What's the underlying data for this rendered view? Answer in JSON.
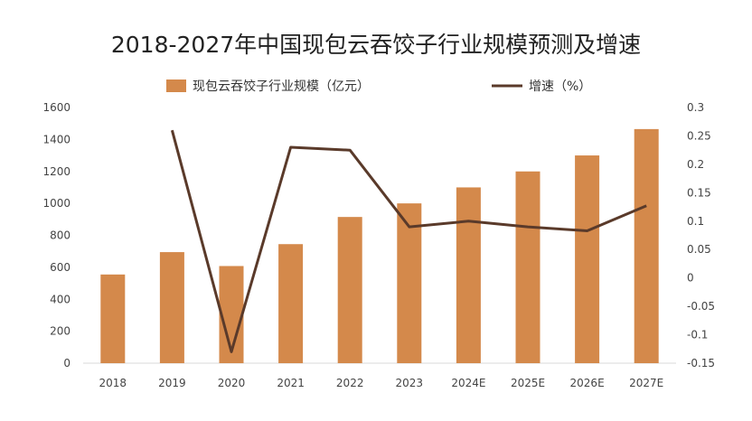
{
  "chart_data": {
    "type": "bar",
    "title": "2018-2027年中国现包云吞饺子行业规模预测及增速",
    "categories": [
      "2018",
      "2019",
      "2020",
      "2021",
      "2022",
      "2023",
      "2024E",
      "2025E",
      "2026E",
      "2027E"
    ],
    "series": [
      {
        "name": "现包云吞饺子行业规模（亿元）",
        "type": "bar",
        "axis": "left",
        "color": "#D4894B",
        "values": [
          555,
          695,
          608,
          745,
          915,
          1000,
          1100,
          1200,
          1300,
          1465
        ]
      },
      {
        "name": "增速（%）",
        "type": "line",
        "axis": "right",
        "color": "#5A3A2A",
        "values": [
          null,
          0.26,
          -0.13,
          0.23,
          0.225,
          0.09,
          0.1,
          0.09,
          0.083,
          0.127
        ]
      }
    ],
    "y_left": {
      "min": 0,
      "max": 1600,
      "ticks": [
        "0",
        "200",
        "400",
        "600",
        "800",
        "1000",
        "1200",
        "1400",
        "1600"
      ]
    },
    "y_right": {
      "min": -0.15,
      "max": 0.3,
      "ticks": [
        "-0.15",
        "-0.1",
        "-0.05",
        "0",
        "0.05",
        "0.1",
        "0.15",
        "0.2",
        "0.25",
        "0.3"
      ]
    },
    "legend_position": "top",
    "grid": false
  }
}
